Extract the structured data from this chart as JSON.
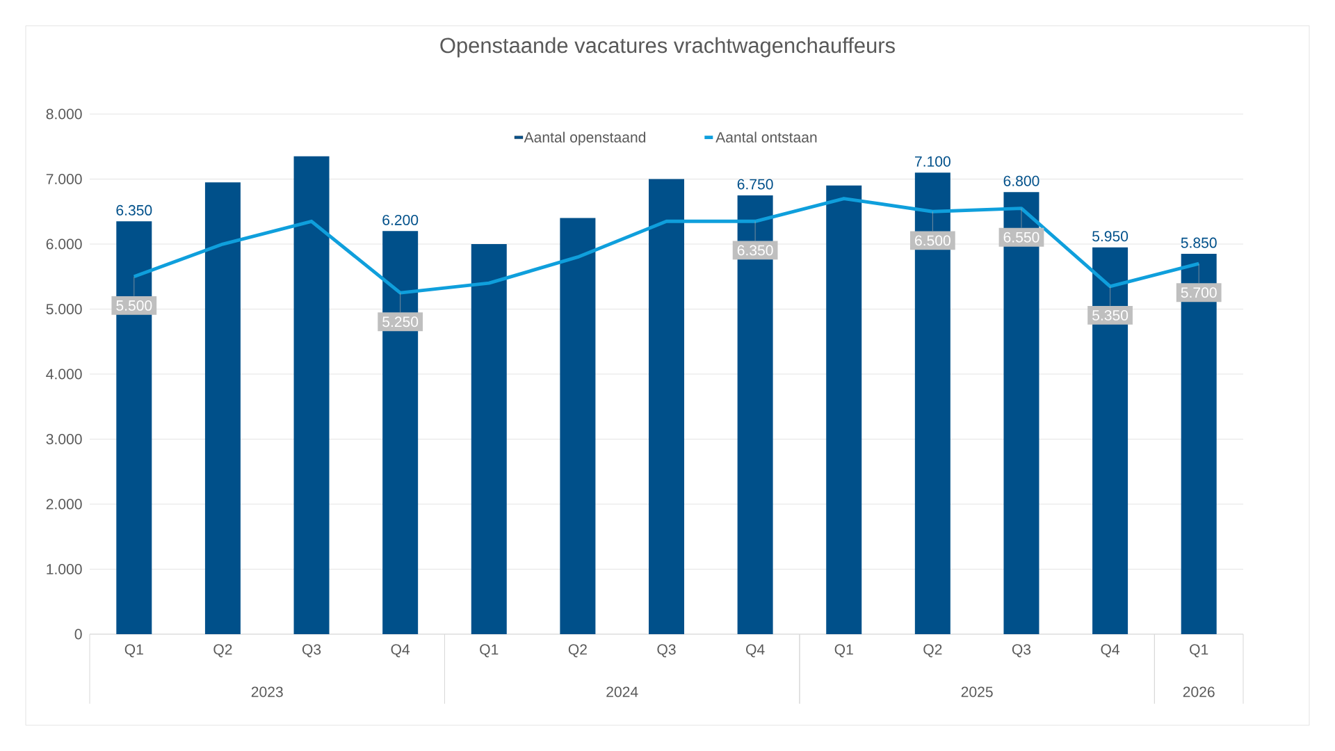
{
  "chart_data": {
    "type": "bar",
    "title": "Openstaande vacatures vrachtwagenchauffeurs",
    "categories": [
      "Q1",
      "Q2",
      "Q3",
      "Q4",
      "Q1",
      "Q2",
      "Q3",
      "Q4",
      "Q1",
      "Q2",
      "Q3",
      "Q4",
      "Q1"
    ],
    "series": [
      {
        "name": "Aantal openstaand",
        "color": "#00508a",
        "values": [
          6350,
          6950,
          7350,
          6200,
          6000,
          6400,
          7000,
          6750,
          6900,
          7100,
          6800,
          5950,
          5850
        ],
        "value_labels": [
          "6.350",
          null,
          null,
          "6.200",
          null,
          null,
          null,
          "6.750",
          null,
          "7.100",
          "6.800",
          "5.950",
          "5.850"
        ]
      },
      {
        "name": "Aantal ontstaan",
        "type": "line",
        "color": "#0f9fdc",
        "values": [
          5500,
          6000,
          6350,
          5250,
          5400,
          5800,
          6350,
          6350,
          6700,
          6500,
          6550,
          5350,
          5700
        ],
        "value_labels": [
          "5.500",
          null,
          null,
          "5.250",
          null,
          null,
          null,
          "6.350",
          null,
          "6.500",
          "6.550",
          "5.350",
          "5.700"
        ]
      }
    ],
    "ylim": [
      0,
      8000
    ],
    "yticks": [
      0,
      {
        "value": 1000,
        "label": "1.000"
      },
      {
        "value": 2000,
        "label": "2.000"
      },
      {
        "value": 3000,
        "label": "3.000"
      },
      {
        "value": 4000,
        "label": "4.000"
      },
      {
        "value": 5000,
        "label": "5.000"
      },
      {
        "value": 6000,
        "label": "6.000"
      },
      {
        "value": 7000,
        "label": "7.000"
      },
      {
        "value": 8000,
        "label": "8.000"
      }
    ],
    "grid": "y",
    "legend": "top",
    "annotations": [
      "2023",
      "2024",
      "2025",
      "2026"
    ]
  }
}
